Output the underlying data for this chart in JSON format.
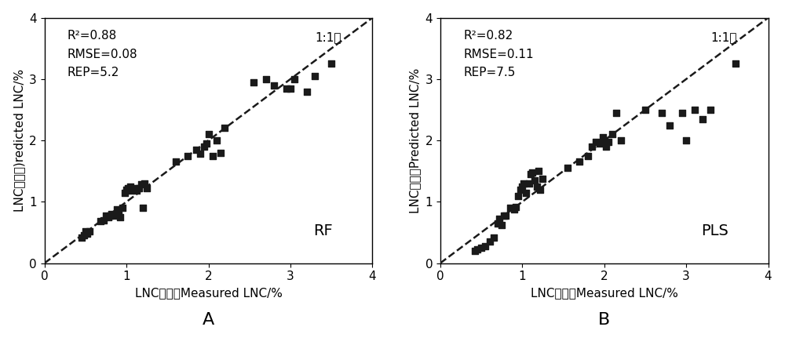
{
  "panel_A": {
    "label": "A",
    "model": "RF",
    "r2": "0.88",
    "rmse": "0.08",
    "rep": "5.2",
    "xlabel": "LNC实测値Measured LNC/%",
    "ylabel": "LNC预测値)redicted LNC/%",
    "x": [
      0.45,
      0.48,
      0.5,
      0.52,
      0.55,
      0.68,
      0.72,
      0.75,
      0.78,
      0.8,
      0.82,
      0.85,
      0.88,
      0.9,
      0.92,
      0.95,
      0.98,
      1.0,
      1.02,
      1.05,
      1.05,
      1.08,
      1.1,
      1.12,
      1.15,
      1.18,
      1.2,
      1.22,
      1.25,
      1.6,
      1.75,
      1.85,
      1.9,
      1.95,
      1.98,
      2.0,
      2.05,
      2.1,
      2.15,
      2.2,
      2.55,
      2.7,
      2.8,
      2.95,
      3.0,
      3.05,
      3.2,
      3.3,
      3.5
    ],
    "y": [
      0.42,
      0.45,
      0.52,
      0.48,
      0.52,
      0.68,
      0.7,
      0.78,
      0.75,
      0.78,
      0.8,
      0.78,
      0.88,
      0.8,
      0.75,
      0.9,
      1.15,
      1.2,
      1.22,
      1.18,
      1.25,
      1.2,
      1.22,
      1.18,
      1.22,
      1.28,
      0.9,
      1.3,
      1.22,
      1.65,
      1.75,
      1.85,
      1.78,
      1.9,
      1.95,
      2.1,
      1.75,
      2.0,
      1.8,
      2.2,
      2.95,
      3.0,
      2.9,
      2.85,
      2.85,
      3.0,
      2.8,
      3.05,
      3.25
    ],
    "xlim": [
      0,
      4
    ],
    "ylim": [
      0,
      4
    ],
    "xticks": [
      0,
      1,
      2,
      3,
      4
    ],
    "yticks": [
      0,
      1,
      2,
      3,
      4
    ]
  },
  "panel_B": {
    "label": "B",
    "model": "PLS",
    "r2": "0.82",
    "rmse": "0.11",
    "rep": "7.5",
    "xlabel": "LNC实测値Measured LNC/%",
    "ylabel": "LNC预测値Predicted LNC/%",
    "x": [
      0.42,
      0.45,
      0.5,
      0.55,
      0.6,
      0.65,
      0.7,
      0.72,
      0.75,
      0.78,
      0.8,
      0.85,
      0.9,
      0.92,
      0.95,
      0.98,
      1.0,
      1.02,
      1.05,
      1.08,
      1.1,
      1.12,
      1.15,
      1.18,
      1.2,
      1.22,
      1.25,
      1.55,
      1.7,
      1.8,
      1.85,
      1.9,
      1.95,
      1.98,
      2.0,
      2.02,
      2.05,
      2.1,
      2.15,
      2.2,
      2.5,
      2.7,
      2.8,
      2.95,
      3.0,
      3.1,
      3.2,
      3.3,
      3.6
    ],
    "y": [
      0.2,
      0.22,
      0.25,
      0.28,
      0.35,
      0.42,
      0.65,
      0.72,
      0.62,
      0.78,
      0.78,
      0.9,
      0.88,
      0.92,
      1.1,
      1.2,
      1.25,
      1.3,
      1.15,
      1.3,
      1.45,
      1.48,
      1.35,
      1.25,
      1.5,
      1.2,
      1.38,
      1.55,
      1.65,
      1.75,
      1.9,
      1.98,
      1.95,
      2.05,
      2.0,
      1.9,
      1.98,
      2.1,
      2.45,
      2.0,
      2.5,
      2.45,
      2.25,
      2.45,
      2.0,
      2.5,
      2.35,
      2.5,
      3.25
    ],
    "xlim": [
      0,
      4
    ],
    "ylim": [
      0,
      4
    ],
    "xticks": [
      0,
      1,
      2,
      3,
      4
    ],
    "yticks": [
      0,
      1,
      2,
      3,
      4
    ]
  },
  "marker": "s",
  "marker_size": 28,
  "marker_color": "#1a1a1a",
  "line_color": "#1a1a1a",
  "line_style": "--",
  "line_width": 1.8,
  "annotation_label": "1:1线",
  "background_color": "#ffffff",
  "font_size_tick": 11,
  "font_size_label": 11,
  "font_size_stats": 11,
  "font_size_model": 14,
  "font_size_panel": 16
}
